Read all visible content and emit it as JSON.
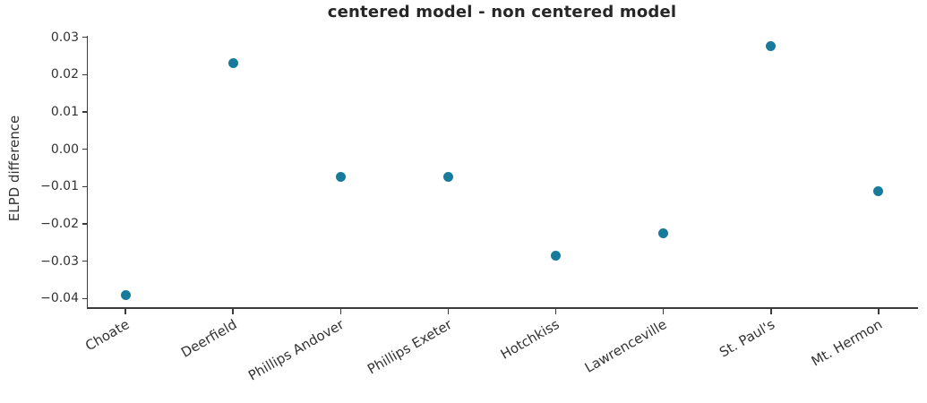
{
  "figure": {
    "title": "centered model - non centered model",
    "ylabel": "ELPD difference"
  },
  "chart_data": {
    "type": "scatter",
    "title": "centered model - non centered model",
    "xlabel": "",
    "ylabel": "ELPD difference",
    "categories": [
      "Choate",
      "Deerfield",
      "Phillips Andover",
      "Phillips Exeter",
      "Hotchkiss",
      "Lawrenceville",
      "St. Paul's",
      "Mt. Hermon"
    ],
    "values": [
      -0.039,
      0.023,
      -0.0073,
      -0.0073,
      -0.0284,
      -0.0224,
      0.0277,
      -0.0112
    ],
    "yticks": [
      0.03,
      0.02,
      0.01,
      0.0,
      -0.01,
      -0.02,
      -0.03,
      -0.04
    ],
    "ytick_labels": [
      "0.03",
      "0.02",
      "0.01",
      "0.00",
      "−0.01",
      "−0.02",
      "−0.03",
      "−0.04"
    ],
    "ylim": [
      -0.0423,
      0.0304
    ],
    "x_padding": 0.35,
    "x_tick_rotation_deg": 30,
    "grid": false,
    "legend": null,
    "marker_color": "#177c9b",
    "axis_color": "#3b3b3b",
    "text_color": "#333333"
  }
}
